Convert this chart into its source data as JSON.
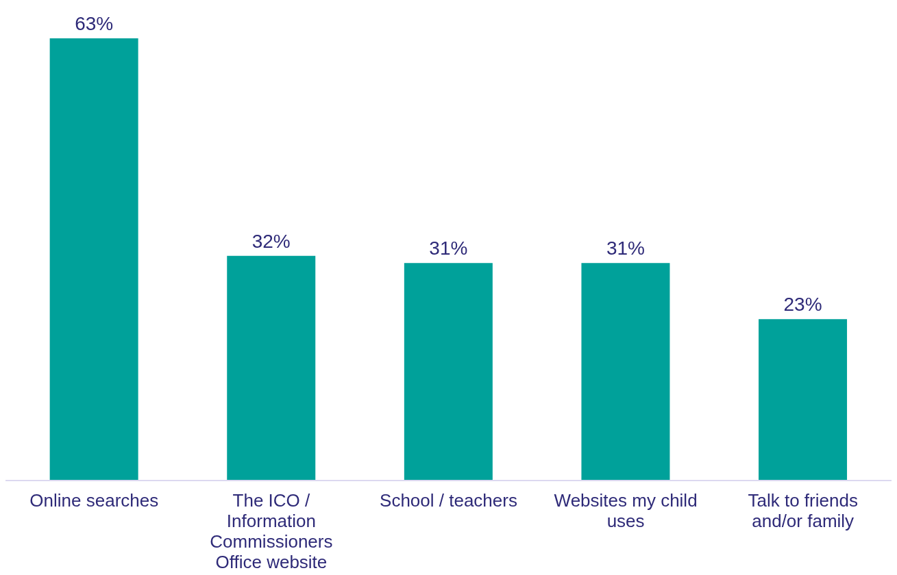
{
  "chart_data": {
    "type": "bar",
    "categories": [
      "Online searches",
      "The ICO / Information Commissioners Office website",
      "School / teachers",
      "Websites my child uses",
      "Talk to friends and/or family"
    ],
    "values": [
      63,
      32,
      31,
      31,
      23
    ],
    "value_labels": [
      "63%",
      "32%",
      "31%",
      "31%",
      "23%"
    ],
    "color": "#00a19a"
  }
}
